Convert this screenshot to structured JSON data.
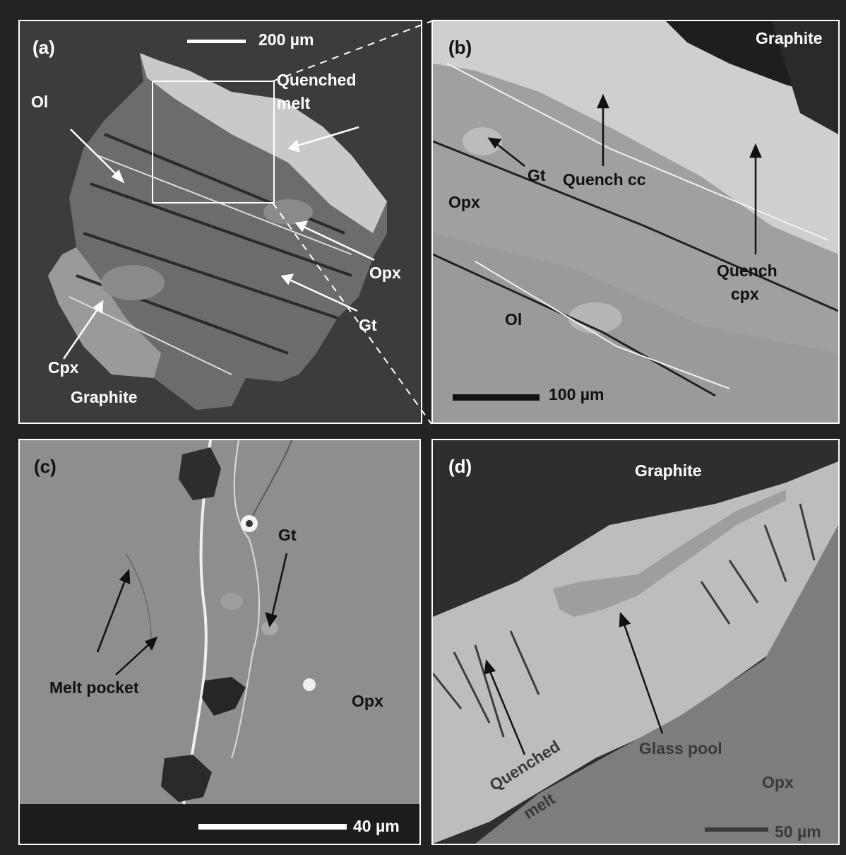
{
  "panels": {
    "a": {
      "label": "(a)",
      "scale": "200 µm",
      "labels": {
        "ol": "Ol",
        "quenched": "Quenched",
        "melt": "melt",
        "opx": "Opx",
        "gt": "Gt",
        "cpx": "Cpx",
        "graphite": "Graphite"
      }
    },
    "b": {
      "label": "(b)",
      "scale": "100 µm",
      "labels": {
        "graphite": "Graphite",
        "gt": "Gt",
        "quench_cc": "Quench cc",
        "opx": "Opx",
        "quench": "Quench",
        "cpx": "cpx",
        "ol": "Ol"
      }
    },
    "c": {
      "label": "(c)",
      "scale": "40 µm",
      "labels": {
        "gt": "Gt",
        "melt_pocket": "Melt pocket",
        "opx": "Opx"
      }
    },
    "d": {
      "label": "(d)",
      "scale": "50 µm",
      "labels": {
        "graphite": "Graphite",
        "glass_pool": "Glass pool",
        "opx": "Opx",
        "quenched": "Quenched",
        "melt": "melt"
      }
    }
  },
  "colors": {
    "background": "#232323",
    "frame": "#ffffff",
    "bse_mid": "#8e8e8e",
    "bse_dark": "#3c3c3c"
  }
}
